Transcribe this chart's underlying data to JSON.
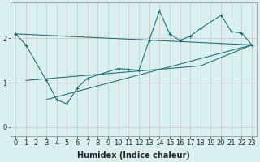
{
  "bg_color": "#daf0f0",
  "grid_color": "#b8dada",
  "line_color": "#1a6b6b",
  "xlabel": "Humidex (Indice chaleur)",
  "xlabel_fontsize": 7,
  "tick_fontsize": 6,
  "xlim": [
    -0.5,
    23.5
  ],
  "ylim": [
    -0.2,
    2.8
  ],
  "yticks": [
    0,
    1,
    2
  ],
  "xticks": [
    0,
    1,
    2,
    3,
    4,
    5,
    6,
    7,
    8,
    9,
    10,
    11,
    12,
    13,
    14,
    15,
    16,
    17,
    18,
    19,
    20,
    21,
    22,
    23
  ],
  "main_x": [
    0,
    1,
    3,
    4,
    5,
    6,
    7,
    10,
    11,
    12,
    13,
    14,
    15,
    16,
    17,
    18,
    20,
    21,
    22,
    23
  ],
  "main_y": [
    2.1,
    1.85,
    1.05,
    0.62,
    0.52,
    0.88,
    1.1,
    1.32,
    1.3,
    1.28,
    1.95,
    2.62,
    2.1,
    1.95,
    2.05,
    2.22,
    2.52,
    2.15,
    2.12,
    1.85
  ],
  "upper_line_x": [
    0,
    23
  ],
  "upper_line_y": [
    2.1,
    1.85
  ],
  "lower_line1_x": [
    1,
    18,
    23
  ],
  "lower_line1_y": [
    1.05,
    1.38,
    1.85
  ],
  "lower_line2_x": [
    3,
    23
  ],
  "lower_line2_y": [
    0.62,
    1.85
  ]
}
